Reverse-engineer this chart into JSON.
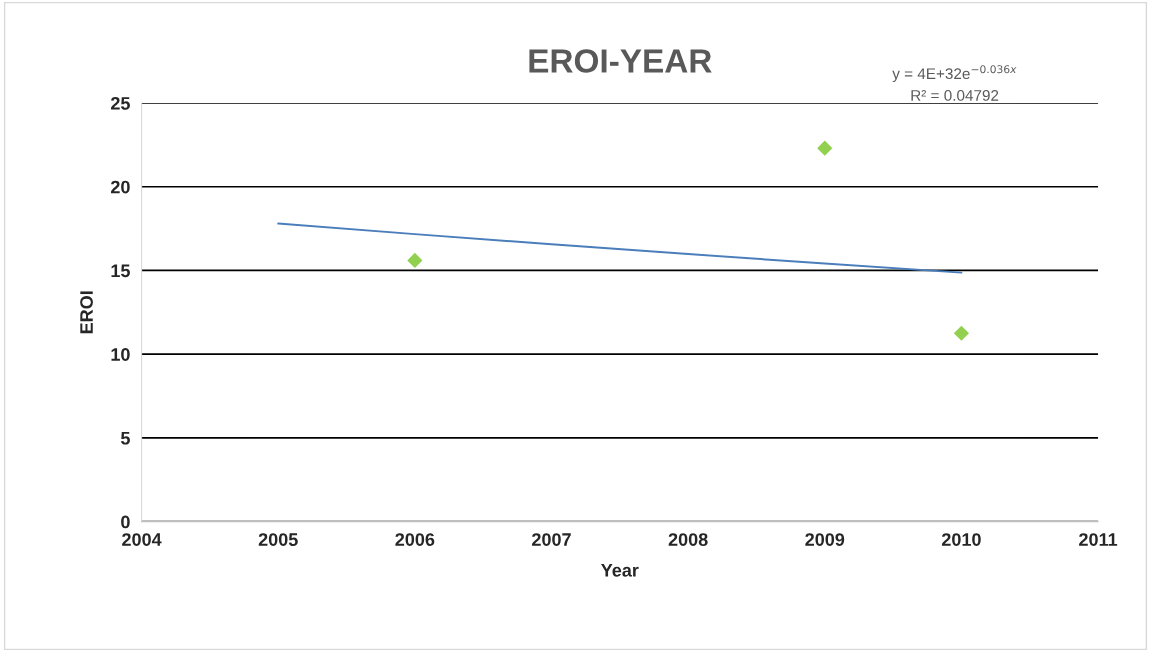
{
  "chart_data": {
    "type": "scatter",
    "title": "EROI-YEAR",
    "xlabel": "Year",
    "ylabel": "EROI",
    "xlim": [
      2004,
      2011
    ],
    "xticks": [
      2004,
      2005,
      2006,
      2007,
      2008,
      2009,
      2010,
      2011
    ],
    "ylim": [
      0,
      25
    ],
    "yticks": [
      0,
      5,
      10,
      15,
      20,
      25
    ],
    "grid": "y",
    "legend": false,
    "series": [
      {
        "color": "#92d050",
        "marker": "diamond",
        "x": [
          2006,
          2009,
          2010
        ],
        "values": [
          15.6,
          22.3,
          11.25
        ]
      },
      {
        "type": "line",
        "color": "#4a7ebb",
        "marker": "none",
        "line_style": "solid",
        "x": [
          2005,
          2006,
          2007,
          2008,
          2009,
          2010
        ],
        "values": [
          17.8,
          17.17,
          16.56,
          15.98,
          15.41,
          14.87
        ]
      }
    ],
    "annotations": [
      "y = 4E+32e$^{−0.036x}$",
      "R² = 0.04792"
    ]
  }
}
